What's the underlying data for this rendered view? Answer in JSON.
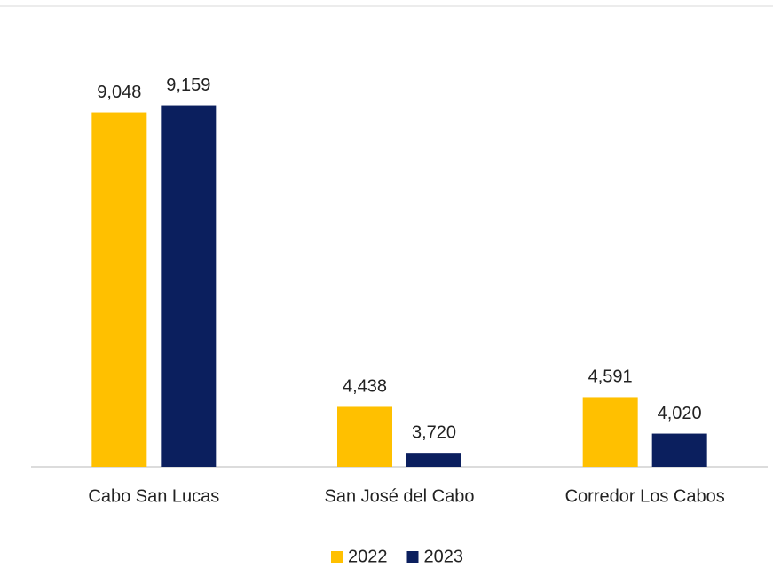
{
  "chart_data": {
    "type": "bar",
    "categories": [
      "Cabo San Lucas",
      "San José del Cabo",
      "Corredor Los Cabos"
    ],
    "series": [
      {
        "name": "2022",
        "color": "#FFC000",
        "values": [
          9048,
          4438,
          4591
        ],
        "value_labels": [
          "9,048",
          "4,438",
          "4,591"
        ]
      },
      {
        "name": "2023",
        "color": "#0B1F5E",
        "values": [
          9159,
          3720,
          4020
        ],
        "value_labels": [
          "9,159",
          "3,720",
          "4,020"
        ]
      }
    ],
    "ylim": [
      3500,
      9500
    ],
    "legend": "bottom"
  }
}
